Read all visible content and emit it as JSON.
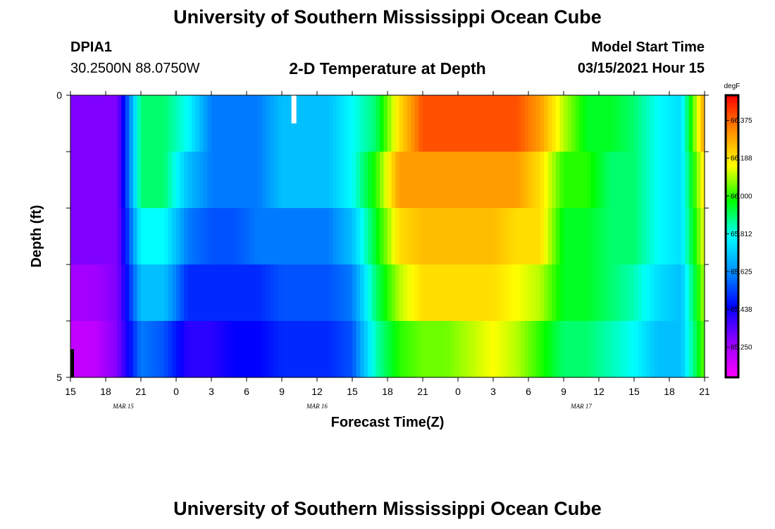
{
  "header": {
    "title": "University of Southern Mississippi Ocean Cube",
    "station_id": "DPIA1",
    "station_coords": "30.2500N 88.0750W",
    "chart_title": "2-D Temperature at Depth",
    "model_label": "Model Start Time",
    "model_time": "03/15/2021 Hour 15"
  },
  "footer": {
    "title": "University of Southern Mississippi Ocean Cube"
  },
  "colors": {
    "colormap": [
      "#ff00ff",
      "#9400ff",
      "#0000ff",
      "#0090ff",
      "#00ffff",
      "#00ff00",
      "#ffff00",
      "#ff8c00",
      "#ff0000"
    ],
    "marker": "#ffffff",
    "axis": "#000000"
  },
  "chart_data": {
    "type": "heatmap",
    "title": "2-D Temperature at Depth",
    "xlabel": "Forecast Time(Z)",
    "ylabel": "Depth (ft)",
    "ylim": [
      0,
      5
    ],
    "y_tick_labels": [
      "0",
      "5"
    ],
    "y_rows": 5,
    "x_start_hour": 15,
    "x_end_hour": 69,
    "x_tick_labels": [
      "15",
      "18",
      "21",
      "0",
      "3",
      "6",
      "9",
      "12",
      "15",
      "18",
      "21",
      "0",
      "3",
      "6",
      "9",
      "12",
      "15",
      "18",
      "21"
    ],
    "date_labels": [
      {
        "label": "MAR 15",
        "hour": 19.5
      },
      {
        "label": "MAR 16",
        "hour": 36
      },
      {
        "label": "MAR 17",
        "hour": 58.5
      }
    ],
    "colorbar": {
      "unit": "degF",
      "range": [
        65.1,
        66.5
      ],
      "tick_labels": [
        "65.250",
        "65.438",
        "65.625",
        "65.812",
        "66.000",
        "66.188",
        "66.375"
      ],
      "tick_values": [
        65.25,
        65.438,
        65.625,
        65.812,
        66.0,
        66.188,
        66.375
      ]
    },
    "marker_hour": 34,
    "marker_depth_range": [
      0,
      0.5
    ],
    "hours": [
      15,
      17,
      19,
      21,
      23,
      25,
      27,
      29,
      31,
      33,
      35,
      37,
      39,
      41,
      43,
      45,
      47,
      49,
      51,
      53,
      55,
      57,
      59,
      61,
      63,
      65,
      67,
      69
    ],
    "values": [
      [
        65.3,
        65.3,
        65.3,
        65.9,
        65.9,
        65.8,
        65.6,
        65.6,
        65.6,
        65.7,
        65.7,
        65.7,
        65.8,
        65.9,
        66.2,
        66.4,
        66.4,
        66.4,
        66.4,
        66.4,
        66.3,
        66.1,
        65.95,
        65.95,
        65.9,
        65.8,
        65.75,
        66.3
      ],
      [
        65.3,
        65.3,
        65.3,
        65.9,
        65.9,
        65.7,
        65.6,
        65.6,
        65.6,
        65.7,
        65.7,
        65.7,
        65.8,
        66.0,
        66.3,
        66.3,
        66.3,
        66.3,
        66.3,
        66.3,
        66.2,
        66.0,
        66.0,
        65.9,
        65.9,
        65.8,
        65.75,
        66.2
      ],
      [
        65.3,
        65.3,
        65.3,
        65.8,
        65.8,
        65.6,
        65.55,
        65.55,
        65.6,
        65.6,
        65.6,
        65.6,
        65.7,
        65.95,
        66.2,
        66.25,
        66.25,
        66.25,
        66.25,
        66.2,
        66.2,
        65.95,
        65.95,
        65.9,
        65.9,
        65.8,
        65.75,
        66.15
      ],
      [
        65.25,
        65.25,
        65.3,
        65.7,
        65.7,
        65.5,
        65.5,
        65.5,
        65.5,
        65.55,
        65.55,
        65.55,
        65.6,
        65.9,
        66.1,
        66.2,
        66.2,
        66.2,
        66.2,
        66.15,
        66.1,
        65.95,
        65.95,
        65.9,
        65.85,
        65.75,
        65.7,
        66.1
      ],
      [
        65.2,
        65.2,
        65.3,
        65.6,
        65.55,
        65.4,
        65.4,
        65.45,
        65.45,
        65.5,
        65.5,
        65.5,
        65.55,
        65.85,
        66.0,
        66.05,
        66.05,
        66.1,
        66.15,
        66.1,
        66.0,
        65.9,
        65.9,
        65.85,
        65.8,
        65.7,
        65.7,
        66.05
      ]
    ]
  }
}
